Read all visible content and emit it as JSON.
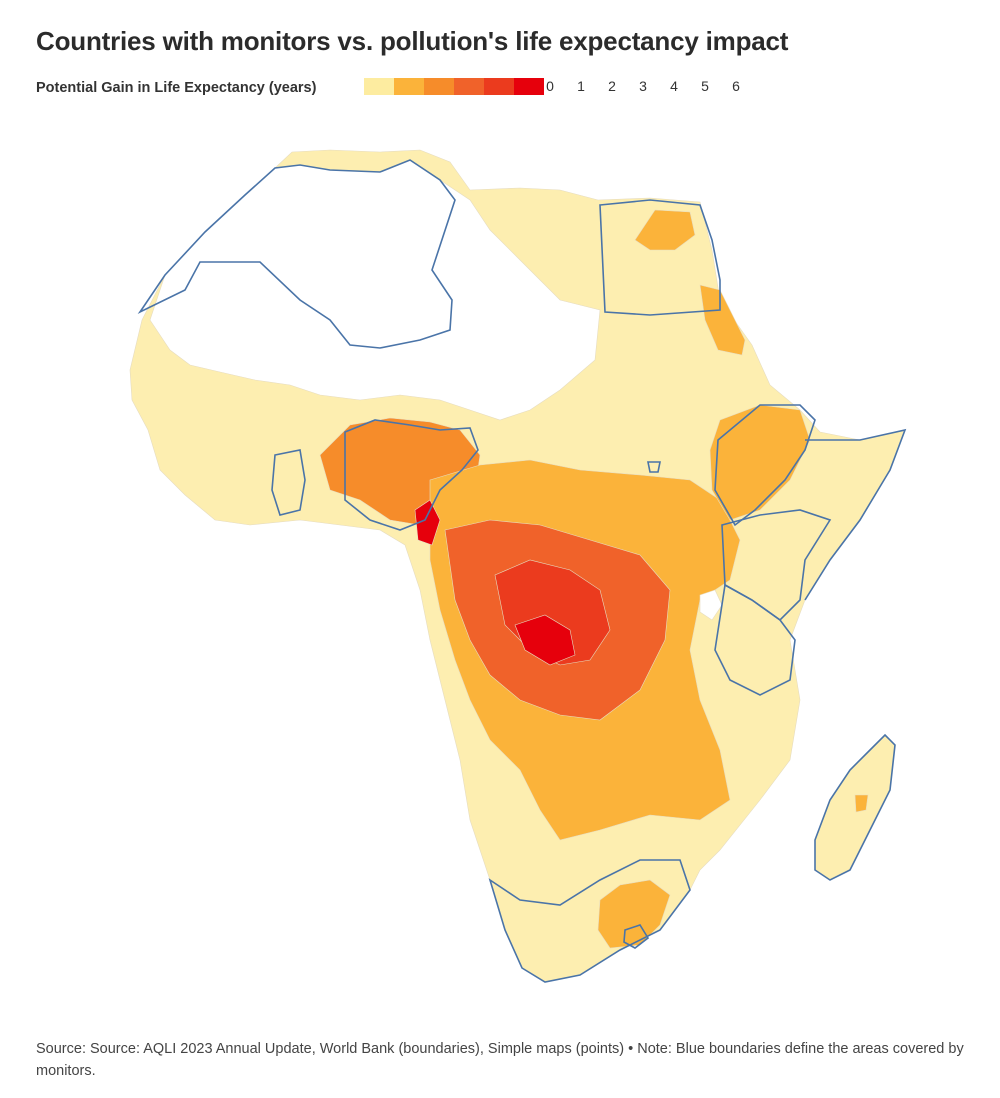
{
  "title": "Countries with monitors vs. pollution's life expectancy impact",
  "legend": {
    "label": "Potential Gain in Life Expectancy (years)",
    "colors": [
      "#fdeca0",
      "#fbb33a",
      "#f68c2a",
      "#f0622a",
      "#eb3b1e",
      "#e6000c"
    ],
    "ticks": [
      "0",
      "1",
      "2",
      "3",
      "4",
      "5",
      "6"
    ]
  },
  "map": {
    "country_fill_default": "#fdeeb0",
    "no_data_fill": "#ffffff",
    "monitor_boundary_color": "#4a74a8",
    "internal_boundary_color": "#e6dcc0"
  },
  "source": "Source: Source: AQLI 2023 Annual Update, World Bank (boundaries), Simple maps (points) • Note: Blue boundaries define the areas covered by monitors."
}
